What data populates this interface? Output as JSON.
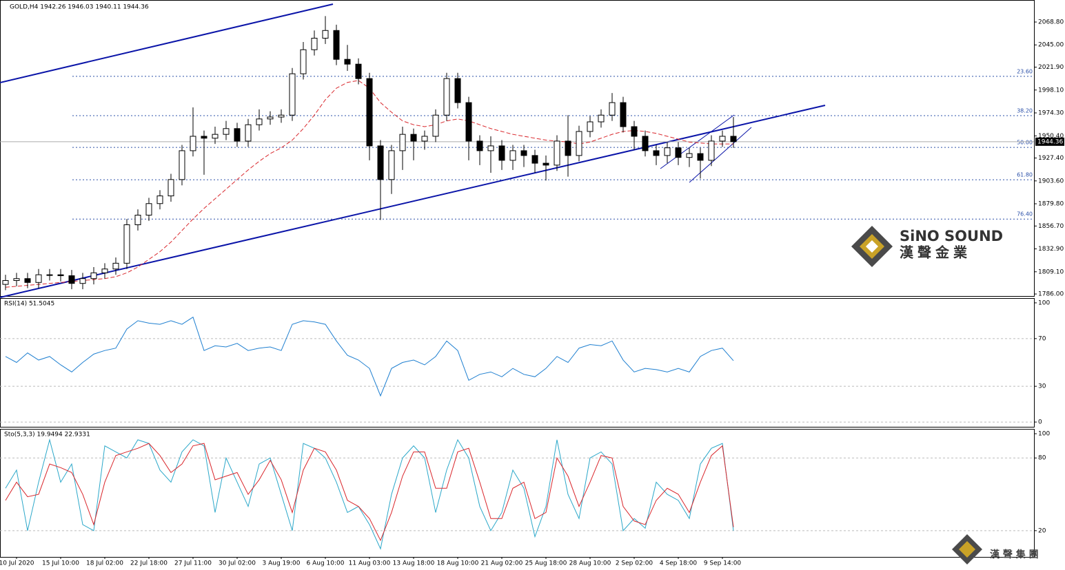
{
  "chart_data": [
    {
      "type": "candlestick",
      "title": "GOLD,H4  1942.26 1946.03 1940.11 1944.36",
      "categories": [
        null,
        "10 Jul 2020",
        null,
        null,
        null,
        "15 Jul 10:00",
        null,
        null,
        null,
        "18 Jul 02:00",
        null,
        null,
        null,
        "22 Jul 18:00",
        null,
        null,
        null,
        "27 Jul 11:00",
        null,
        null,
        null,
        "30 Jul 02:00",
        null,
        null,
        null,
        "3 Aug 19:00",
        null,
        null,
        null,
        "6 Aug 10:00",
        null,
        null,
        null,
        "11 Aug 03:00",
        null,
        null,
        null,
        "13 Aug 18:00",
        null,
        null,
        null,
        "18 Aug 10:00",
        null,
        null,
        null,
        "21 Aug 02:00",
        null,
        null,
        null,
        "25 Aug 18:00",
        null,
        null,
        null,
        "28 Aug 10:00",
        null,
        null,
        null,
        "2 Sep 02:00",
        null,
        null,
        null,
        "4 Sep 18:00",
        null,
        null,
        null,
        "9 Sep 14:00",
        null
      ],
      "open": [
        1796,
        1800,
        1802,
        1798,
        1806,
        1806,
        1805,
        1797,
        1802,
        1808,
        1812,
        1818,
        1858,
        1868,
        1880,
        1888,
        1905,
        1935,
        1950,
        1948,
        1952,
        1958,
        1945,
        1962,
        1968,
        1970,
        1972,
        2015,
        2040,
        2052,
        2060,
        2030,
        2025,
        2010,
        1940,
        1905,
        1935,
        1952,
        1945,
        1950,
        1972,
        2010,
        1985,
        1945,
        1935,
        1940,
        1925,
        1935,
        1930,
        1922,
        1920,
        1945,
        1930,
        1955,
        1965,
        1972,
        1985,
        1960,
        1950,
        1935,
        1930,
        1938,
        1928,
        1932,
        1925,
        1945,
        1950
      ],
      "high": [
        1806,
        1808,
        1808,
        1812,
        1812,
        1812,
        1811,
        1808,
        1814,
        1818,
        1824,
        1864,
        1874,
        1886,
        1894,
        1911,
        1941,
        1980,
        1956,
        1960,
        1966,
        1964,
        1968,
        1978,
        1976,
        1978,
        2021,
        2048,
        2060,
        2075,
        2066,
        2045,
        2031,
        2016,
        1946,
        1941,
        1960,
        1958,
        1956,
        1978,
        2016,
        2016,
        1991,
        1951,
        1950,
        1946,
        1941,
        1941,
        1936,
        1930,
        1951,
        1972,
        1961,
        1971,
        1978,
        1995,
        1991,
        1966,
        1956,
        1941,
        1944,
        1944,
        1938,
        1938,
        1951,
        1956,
        1970
      ],
      "low": [
        1790,
        1794,
        1792,
        1792,
        1800,
        1799,
        1791,
        1791,
        1796,
        1802,
        1806,
        1812,
        1852,
        1862,
        1874,
        1882,
        1899,
        1929,
        1910,
        1942,
        1946,
        1939,
        1939,
        1956,
        1962,
        1964,
        1966,
        2009,
        2034,
        2046,
        2024,
        2018,
        2004,
        1925,
        1863,
        1890,
        1915,
        1925,
        1936,
        1944,
        1966,
        1979,
        1925,
        1920,
        1912,
        1915,
        1915,
        1918,
        1912,
        1904,
        1914,
        1908,
        1924,
        1949,
        1959,
        1966,
        1954,
        1936,
        1929,
        1920,
        1922,
        1920,
        1918,
        1906,
        1919,
        1939,
        1938
      ],
      "close": [
        1800,
        1802,
        1798,
        1806,
        1806,
        1805,
        1797,
        1802,
        1808,
        1812,
        1818,
        1858,
        1868,
        1880,
        1888,
        1905,
        1935,
        1950,
        1948,
        1952,
        1958,
        1945,
        1962,
        1968,
        1970,
        1972,
        2015,
        2040,
        2052,
        2060,
        2030,
        2025,
        2010,
        1940,
        1905,
        1935,
        1952,
        1945,
        1950,
        1972,
        2010,
        1985,
        1945,
        1935,
        1940,
        1925,
        1935,
        1930,
        1922,
        1920,
        1945,
        1930,
        1955,
        1965,
        1972,
        1985,
        1960,
        1950,
        1935,
        1930,
        1938,
        1928,
        1932,
        1925,
        1945,
        1950,
        1944.36
      ],
      "ma": {
        "color": "#d9262b",
        "values": [
          1793,
          1794,
          1795,
          1796,
          1797,
          1798,
          1799,
          1800,
          1801,
          1802,
          1804,
          1808,
          1814,
          1822,
          1830,
          1840,
          1852,
          1864,
          1875,
          1885,
          1895,
          1905,
          1915,
          1924,
          1932,
          1938,
          1946,
          1958,
          1972,
          1988,
          2000,
          2006,
          2008,
          2000,
          1985,
          1975,
          1966,
          1962,
          1960,
          1962,
          1966,
          1968,
          1966,
          1962,
          1958,
          1955,
          1952,
          1950,
          1948,
          1946,
          1945,
          1944,
          1942,
          1944,
          1948,
          1952,
          1955,
          1956,
          1955,
          1953,
          1950,
          1947,
          1944,
          1943,
          1942,
          1942,
          1942
        ]
      },
      "ylim": [
        1783.9,
        2091.7
      ],
      "yticks": [
        {
          "value": 2068.8,
          "label": "2068.80"
        },
        {
          "value": 2045,
          "label": "2045.00"
        },
        {
          "value": 2021.9,
          "label": "2021.90"
        },
        {
          "value": 1998.1,
          "label": "1998.10"
        },
        {
          "value": 1974.3,
          "label": "1974.30"
        },
        {
          "value": 1950.4,
          "label": "1950.40"
        },
        {
          "value": 1927.4,
          "label": "1927.40"
        },
        {
          "value": 1903.6,
          "label": "1903.60"
        },
        {
          "value": 1879.8,
          "label": "1879.80"
        },
        {
          "value": 1856.7,
          "label": "1856.70"
        },
        {
          "value": 1832.9,
          "label": "1832.90"
        },
        {
          "value": 1809.1,
          "label": "1809.10"
        },
        {
          "value": 1786,
          "label": "1786.00"
        }
      ],
      "levels": [
        {
          "price": 2012.3,
          "label": "23.60"
        },
        {
          "price": 1971.4,
          "label": "38.20"
        },
        {
          "price": 1938.4,
          "label": "50.00"
        },
        {
          "price": 1904.8,
          "label": "61.80"
        },
        {
          "price": 1863.9,
          "label": "76.40"
        }
      ],
      "last_price": 1944.36
    },
    {
      "type": "line",
      "title": "RSI(14) 51.5045",
      "series": [
        {
          "color": "#1e7fd0",
          "values": [
            55,
            50,
            58,
            52,
            55,
            48,
            42,
            50,
            57,
            60,
            62,
            78,
            85,
            83,
            82,
            85,
            82,
            88,
            60,
            64,
            63,
            66,
            60,
            62,
            63,
            60,
            82,
            85,
            84,
            82,
            68,
            56,
            52,
            45,
            22,
            45,
            50,
            52,
            48,
            55,
            68,
            60,
            35,
            40,
            42,
            38,
            45,
            40,
            38,
            45,
            55,
            50,
            62,
            65,
            64,
            68,
            52,
            42,
            45,
            44,
            42,
            45,
            42,
            55,
            60,
            62,
            51.5
          ]
        }
      ],
      "ylim": [
        -4,
        104
      ],
      "yticks": [
        0,
        30,
        70,
        100
      ]
    },
    {
      "type": "line",
      "title": "Sto(5,3,3) 19.9494 22.9331",
      "series": [
        {
          "color": "#2aa7c9",
          "values": [
            55,
            70,
            20,
            60,
            95,
            60,
            75,
            25,
            20,
            90,
            85,
            80,
            95,
            92,
            70,
            60,
            85,
            95,
            90,
            35,
            80,
            60,
            40,
            75,
            80,
            50,
            20,
            92,
            88,
            80,
            60,
            35,
            40,
            25,
            5,
            50,
            80,
            90,
            80,
            35,
            70,
            95,
            80,
            40,
            20,
            35,
            70,
            55,
            15,
            40,
            95,
            50,
            30,
            80,
            85,
            75,
            20,
            30,
            22,
            60,
            50,
            45,
            30,
            75,
            88,
            92,
            19.95
          ]
        },
        {
          "color": "#d9262b",
          "values": [
            45,
            60,
            48,
            50,
            75,
            72,
            68,
            50,
            25,
            60,
            82,
            85,
            88,
            92,
            82,
            68,
            75,
            90,
            92,
            62,
            65,
            68,
            50,
            62,
            78,
            62,
            35,
            70,
            88,
            85,
            70,
            45,
            40,
            30,
            12,
            35,
            65,
            85,
            85,
            55,
            55,
            85,
            88,
            60,
            30,
            30,
            55,
            60,
            30,
            35,
            80,
            65,
            40,
            60,
            82,
            80,
            40,
            28,
            25,
            45,
            55,
            50,
            35,
            60,
            82,
            90,
            22.93
          ]
        }
      ],
      "ylim": [
        -1.1,
        104
      ],
      "yticks": [
        20,
        80,
        100
      ]
    }
  ],
  "watermark": {
    "brand": "SiNO SOUND",
    "chinese": "漢聲金業"
  },
  "footer_logo": "漢 聲 集 團"
}
